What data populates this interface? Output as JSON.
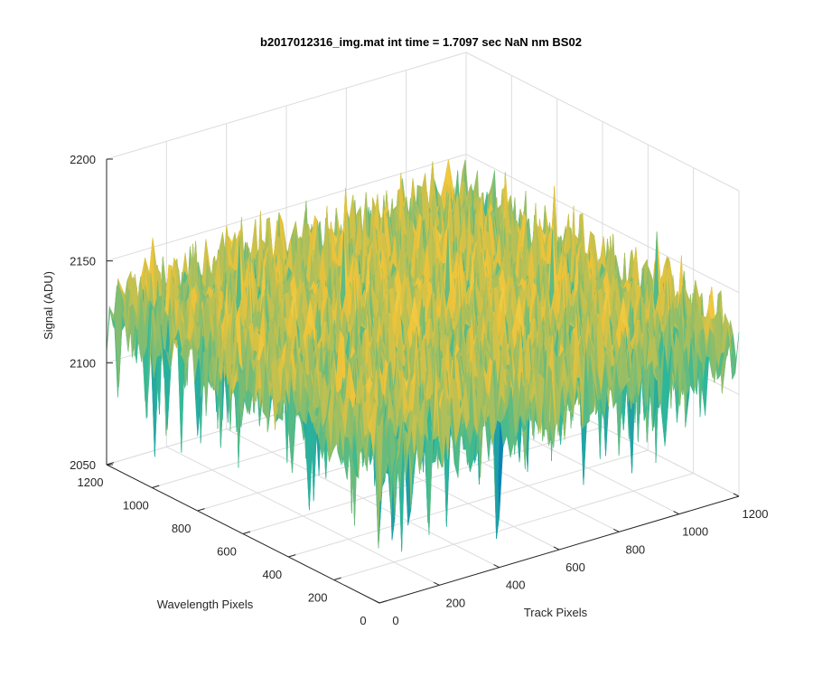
{
  "chart_data": {
    "type": "surface",
    "title": "b2017012316_img.mat int time = 1.7097 sec  NaN nm BS02",
    "zlabel": "Signal (ADU)",
    "xlabel": "Track Pixels",
    "ylabel": "Wavelength Pixels",
    "x_ticks": [
      "0",
      "200",
      "400",
      "600",
      "800",
      "1000",
      "1200"
    ],
    "y_ticks": [
      "0",
      "200",
      "400",
      "600",
      "800",
      "1000",
      "1200"
    ],
    "z_ticks": [
      "2050",
      "2100",
      "2150",
      "2200"
    ],
    "xlim": [
      0,
      1200
    ],
    "ylim": [
      0,
      1200
    ],
    "zlim": [
      2050,
      2200
    ],
    "grid": true,
    "colormap": "parula",
    "surface_mean": 2122,
    "surface_min_approx": 2060,
    "surface_max_approx": 2180,
    "colors": {
      "low": "#0072bd",
      "mid": "#2fb89a",
      "high": "#edc33a",
      "peak": "#f5dc55"
    }
  }
}
